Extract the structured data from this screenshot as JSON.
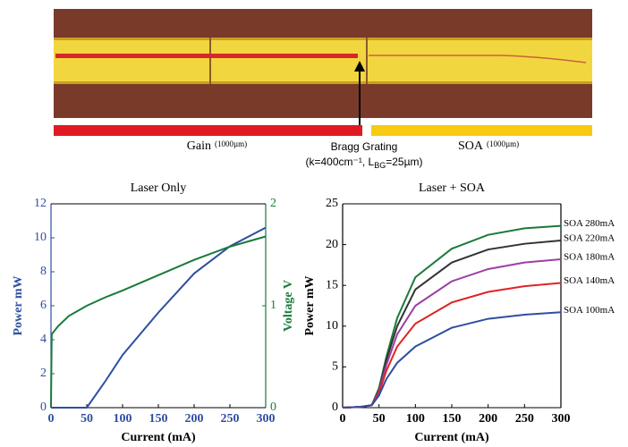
{
  "figure": {
    "gain": "Gain",
    "gain_length": "(1000µm)",
    "bragg": "Bragg Grating",
    "bragg_params": [
      "(k=400cm⁻¹, L",
      "BG",
      "=25µm)"
    ],
    "soa": "SOA",
    "soa_length": "(1000µm)"
  },
  "chart_data": [
    {
      "type": "line",
      "title": "Laser Only",
      "xlabel": "Current (mA)",
      "ylabel": "Power mW",
      "y2label": "Voltage V",
      "x": [
        0,
        1,
        10,
        25,
        50,
        75,
        100,
        150,
        200,
        250,
        300
      ],
      "xlim": [
        0,
        300
      ],
      "xticks": [
        0,
        50,
        100,
        150,
        200,
        250,
        300
      ],
      "ylim": [
        0,
        12
      ],
      "yticks": [
        0,
        2,
        4,
        6,
        8,
        10,
        12
      ],
      "y2lim": [
        0,
        2
      ],
      "y2ticks": [
        0,
        1,
        2
      ],
      "series": [
        {
          "color": "#2e4fa0",
          "axis": "y",
          "values": [
            0,
            0,
            0,
            0,
            0,
            1.5,
            3.1,
            5.6,
            7.9,
            9.5,
            10.6
          ]
        },
        {
          "color": "#1a7a3a",
          "axis": "y2",
          "values": [
            0,
            0.72,
            0.8,
            0.9,
            1.0,
            1.08,
            1.15,
            1.3,
            1.45,
            1.58,
            1.68
          ]
        }
      ]
    },
    {
      "type": "line",
      "title": "Laser + SOA",
      "xlabel": "Current (mA)",
      "ylabel": "Power mW",
      "legend": "line-end",
      "x": [
        0,
        25,
        40,
        50,
        60,
        75,
        100,
        150,
        200,
        250,
        300
      ],
      "xlim": [
        0,
        300
      ],
      "xticks": [
        0,
        50,
        100,
        150,
        200,
        250,
        300
      ],
      "ylim": [
        0,
        25
      ],
      "yticks": [
        0,
        5,
        10,
        15,
        20,
        25
      ],
      "series": [
        {
          "name": "SOA 280mA",
          "color": "#1a7a3a",
          "values": [
            0,
            0.1,
            0.3,
            2.4,
            6.2,
            11,
            16,
            19.5,
            21.2,
            22,
            22.3
          ]
        },
        {
          "name": "SOA 220mA",
          "color": "#333333",
          "values": [
            0,
            0.1,
            0.3,
            2.2,
            5.8,
            10,
            14.5,
            17.8,
            19.4,
            20.1,
            20.5
          ]
        },
        {
          "name": "SOA 180mA",
          "color": "#9b3fa3",
          "values": [
            0,
            0.1,
            0.3,
            2,
            5.2,
            9,
            12.5,
            15.5,
            17,
            17.8,
            18.2
          ]
        },
        {
          "name": "SOA 140mA",
          "color": "#e02424",
          "values": [
            0,
            0.1,
            0.3,
            1.8,
            4.5,
            7.5,
            10.3,
            12.9,
            14.2,
            14.9,
            15.3
          ]
        },
        {
          "name": "SOA 100mA",
          "color": "#2e4fa0",
          "values": [
            0,
            0.1,
            0.3,
            1.5,
            3.5,
            5.5,
            7.5,
            9.8,
            10.9,
            11.4,
            11.7
          ]
        }
      ]
    }
  ]
}
